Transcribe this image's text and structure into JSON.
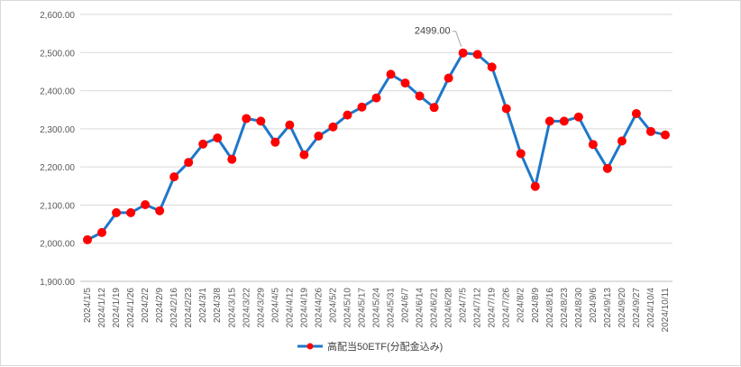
{
  "chart_data": {
    "type": "line",
    "title": "",
    "xlabel": "",
    "ylabel": "",
    "ylim": [
      1900,
      2600
    ],
    "y_ticks": [
      "1,900.00",
      "2,000.00",
      "2,100.00",
      "2,200.00",
      "2,300.00",
      "2,400.00",
      "2,500.00",
      "2,600.00"
    ],
    "grid": true,
    "legend_position": "bottom",
    "categories": [
      "2024/1/5",
      "2024/1/12",
      "2024/1/19",
      "2024/1/26",
      "2024/2/2",
      "2024/2/9",
      "2024/2/16",
      "2024/2/23",
      "2024/3/1",
      "2024/3/8",
      "2024/3/15",
      "2024/3/22",
      "2024/3/29",
      "2024/4/5",
      "2024/4/12",
      "2024/4/19",
      "2024/4/26",
      "2024/5/2",
      "2024/5/10",
      "2024/5/17",
      "2024/5/24",
      "2024/5/31",
      "2024/6/7",
      "2024/6/14",
      "2024/6/21",
      "2024/6/28",
      "2024/7/5",
      "2024/7/12",
      "2024/7/19",
      "2024/7/26",
      "2024/8/2",
      "2024/8/9",
      "2024/8/16",
      "2024/8/23",
      "2024/8/30",
      "2024/9/6",
      "2024/9/13",
      "2024/9/20",
      "2024/9/27",
      "2024/10/4",
      "2024/10/11"
    ],
    "series": [
      {
        "name": "高配当50ETF(分配金込み)",
        "color": "#1f77c9",
        "marker_color": "#ff0000",
        "values": [
          2009,
          2028,
          2080,
          2080,
          2101,
          2085,
          2174,
          2212,
          2260,
          2276,
          2220,
          2327,
          2320,
          2265,
          2310,
          2232,
          2281,
          2305,
          2336,
          2357,
          2381,
          2443,
          2420,
          2386,
          2356,
          2433,
          2499,
          2495,
          2462,
          2353,
          2235,
          2149,
          2320,
          2320,
          2331,
          2259,
          2196,
          2268,
          2340,
          2293,
          2284
        ]
      }
    ],
    "annotations": [
      {
        "category": "2024/7/5",
        "value": 2499,
        "label": "2499.00"
      }
    ]
  },
  "legend": {
    "label": "高配当50ETF(分配金込み)"
  }
}
